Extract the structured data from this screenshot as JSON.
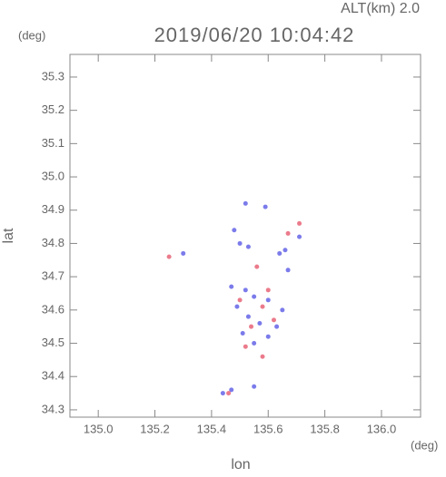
{
  "chart_data": {
    "type": "scatter",
    "title": "2019/06/20 10:04:42",
    "altitude_label": "ALT(km) 2.0",
    "y_unit": "(deg)",
    "x_unit": "(deg)",
    "xlabel": "lon",
    "ylabel": "lat",
    "xlim": [
      134.9,
      136.138
    ],
    "ylim": [
      34.278,
      35.368
    ],
    "xticks": [
      {
        "value": 135,
        "label": "135.0"
      },
      135.2,
      135.4,
      135.6,
      135.8,
      {
        "value": 136,
        "label": "136.0"
      }
    ],
    "yticks": [
      34.3,
      34.4,
      34.5,
      34.6,
      34.7,
      34.8,
      34.9,
      {
        "value": 35,
        "label": "35.0"
      },
      35.1,
      35.2,
      35.3
    ],
    "series": [
      {
        "color": "#5a5ae6",
        "x": [
          135.52,
          135.59,
          135.48,
          135.5,
          135.53,
          135.64,
          135.66,
          135.3,
          135.71,
          135.47,
          135.52,
          135.55,
          135.6,
          135.49,
          135.53,
          135.57,
          135.51,
          135.55,
          135.6,
          135.63,
          135.44,
          135.47,
          135.55,
          135.67,
          135.65
        ],
        "values": [
          34.92,
          34.91,
          34.84,
          34.8,
          34.79,
          34.77,
          34.78,
          34.77,
          34.82,
          34.67,
          34.66,
          34.64,
          34.63,
          34.61,
          34.58,
          34.56,
          34.53,
          34.5,
          34.52,
          34.55,
          34.35,
          34.36,
          34.37,
          34.72,
          34.6
        ]
      },
      {
        "color": "#e65a6e",
        "x": [
          135.25,
          135.71,
          135.56,
          135.6,
          135.58,
          135.54,
          135.52,
          135.58,
          135.62,
          135.5,
          135.67,
          135.46
        ],
        "values": [
          34.76,
          34.86,
          34.73,
          34.66,
          34.61,
          34.55,
          34.49,
          34.46,
          34.57,
          34.63,
          34.83,
          34.35
        ]
      }
    ]
  }
}
